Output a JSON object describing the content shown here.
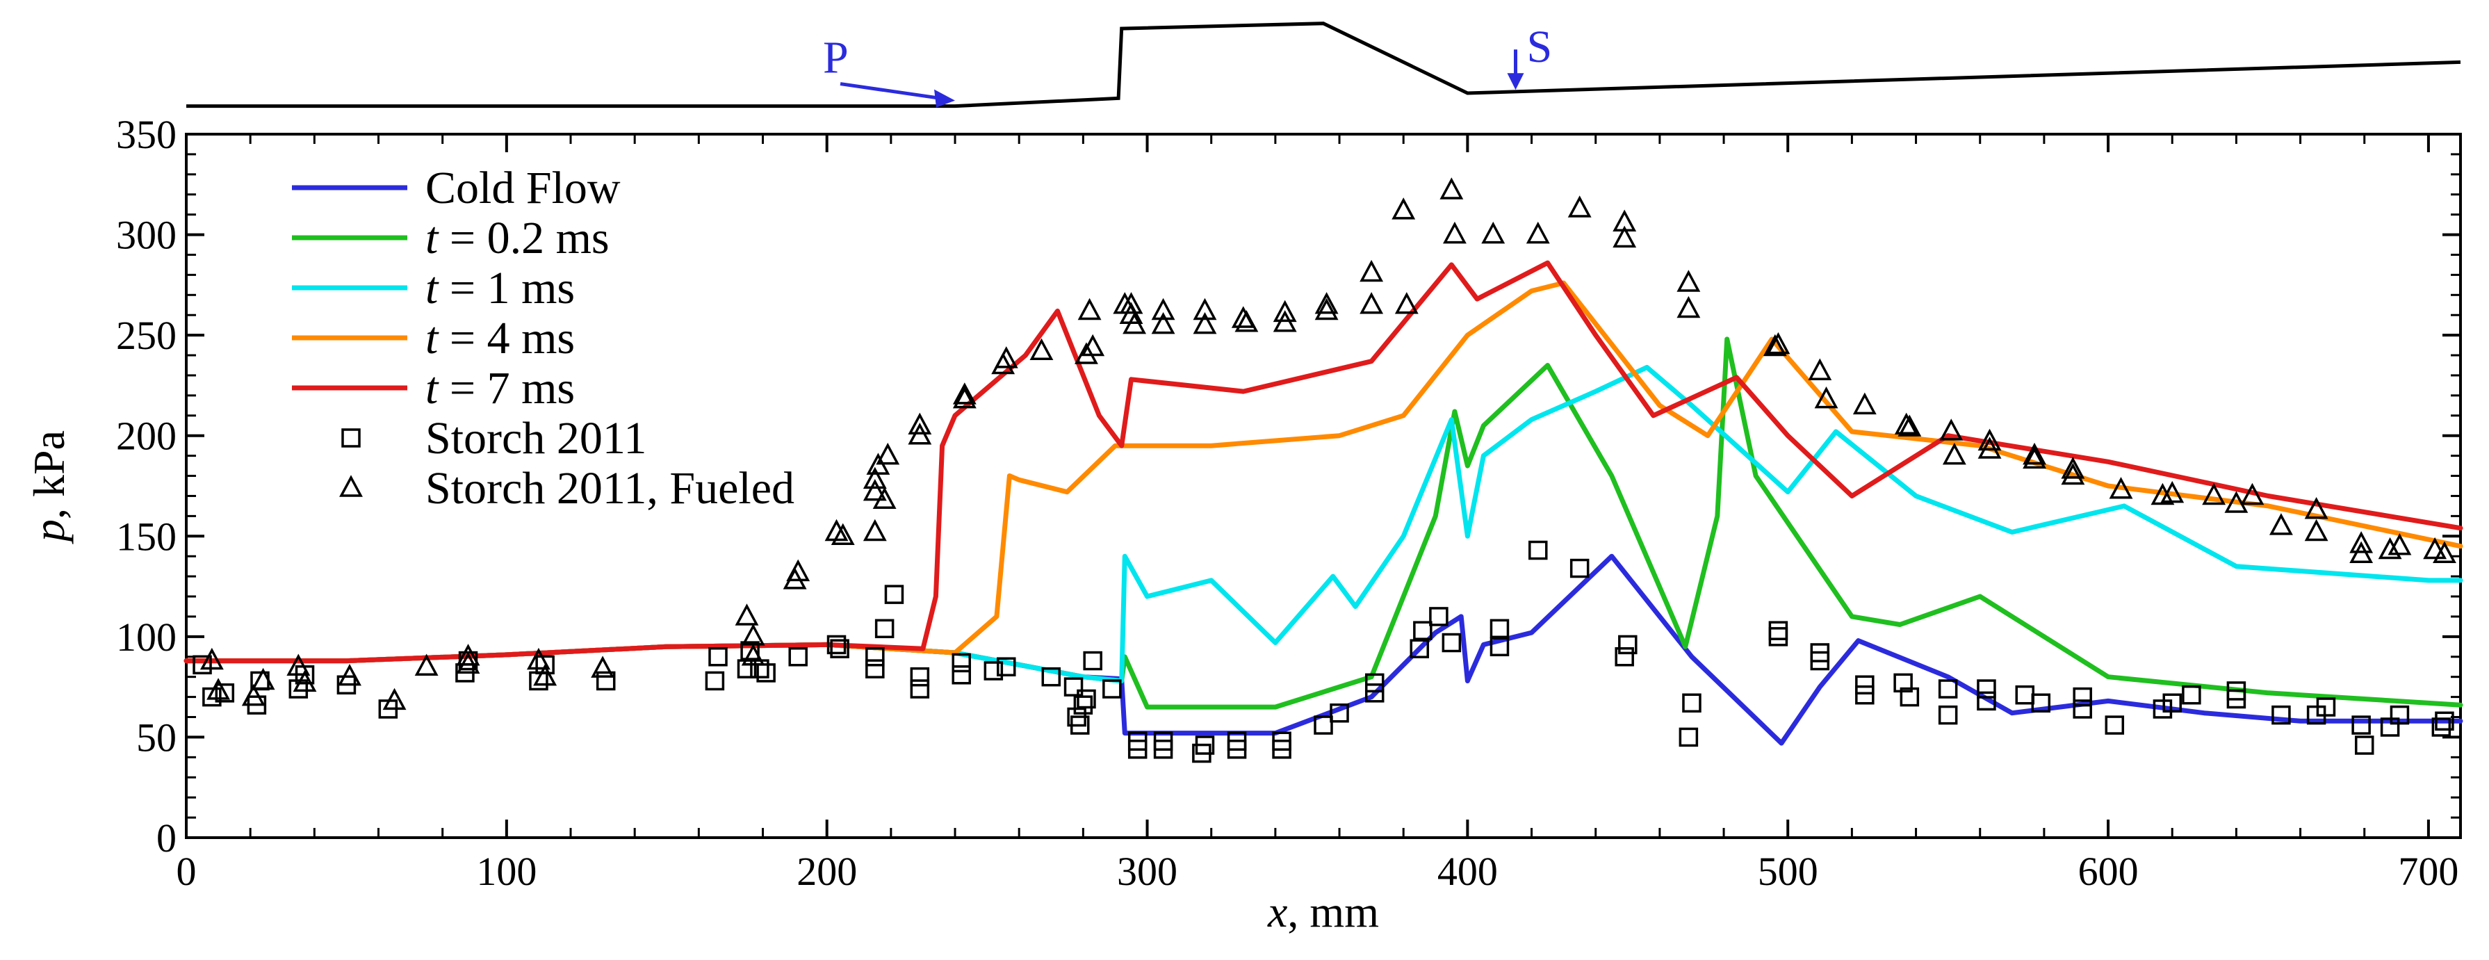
{
  "chart_data": {
    "type": "line",
    "xlabel": "x, mm",
    "ylabel": "p, kPa",
    "xlim": [
      0,
      710
    ],
    "ylim": [
      0,
      350
    ],
    "xticks": [
      0,
      100,
      200,
      300,
      400,
      500,
      600,
      700
    ],
    "yticks": [
      0,
      50,
      100,
      150,
      200,
      250,
      300,
      350
    ],
    "geometry_profile": {
      "x": [
        0,
        240,
        291,
        292,
        355,
        400,
        710
      ],
      "h": [
        4,
        4,
        10,
        64,
        68,
        14,
        38
      ],
      "annotations": [
        {
          "label": "P",
          "x": 240
        },
        {
          "label": "S",
          "x": 415
        }
      ]
    },
    "series": [
      {
        "name": "Cold Flow",
        "color": "#2b2bdd",
        "x": [
          0,
          50,
          100,
          150,
          200,
          240,
          260,
          280,
          292,
          293,
          300,
          340,
          370,
          390,
          398,
          400,
          405,
          420,
          445,
          470,
          498,
          510,
          522,
          550,
          570,
          600,
          630,
          660,
          710
        ],
        "y": [
          88,
          88,
          91,
          95,
          96,
          92,
          86,
          80,
          79,
          52,
          52,
          52,
          70,
          102,
          110,
          78,
          96,
          102,
          140,
          90,
          47,
          75,
          98,
          80,
          62,
          68,
          62,
          58,
          58
        ]
      },
      {
        "name": "t = 0.2 ms",
        "color": "#1fbf1f",
        "x": [
          0,
          50,
          100,
          150,
          200,
          240,
          260,
          280,
          292,
          293,
          300,
          340,
          370,
          390,
          396,
          400,
          405,
          425,
          445,
          468,
          478,
          481,
          490,
          520,
          535,
          560,
          600,
          650,
          710
        ],
        "y": [
          88,
          88,
          91,
          95,
          96,
          92,
          86,
          80,
          78,
          90,
          65,
          65,
          80,
          160,
          212,
          185,
          205,
          235,
          180,
          95,
          160,
          248,
          180,
          110,
          106,
          120,
          80,
          72,
          66
        ]
      },
      {
        "name": "t = 1 ms",
        "color": "#00e5ee",
        "x": [
          0,
          50,
          100,
          150,
          200,
          240,
          260,
          280,
          292,
          293,
          300,
          320,
          340,
          358,
          365,
          380,
          395,
          400,
          405,
          420,
          440,
          456,
          470,
          500,
          515,
          540,
          570,
          605,
          640,
          700,
          710
        ],
        "y": [
          88,
          88,
          91,
          95,
          96,
          92,
          86,
          80,
          78,
          140,
          120,
          128,
          97,
          130,
          115,
          150,
          208,
          150,
          190,
          208,
          222,
          234,
          215,
          172,
          202,
          170,
          152,
          165,
          135,
          128,
          128
        ]
      },
      {
        "name": "t = 4 ms",
        "color": "#ff8a00",
        "x": [
          0,
          50,
          100,
          150,
          200,
          240,
          253,
          257,
          260,
          275,
          290,
          320,
          360,
          380,
          400,
          420,
          430,
          460,
          475,
          495,
          520,
          560,
          600,
          650,
          710
        ],
        "y": [
          88,
          88,
          91,
          95,
          96,
          92,
          110,
          180,
          178,
          172,
          195,
          195,
          200,
          210,
          250,
          272,
          276,
          215,
          200,
          248,
          202,
          195,
          175,
          165,
          145
        ]
      },
      {
        "name": "t = 7 ms",
        "color": "#e01b1b",
        "x": [
          0,
          50,
          100,
          150,
          200,
          230,
          234,
          236,
          240,
          262,
          272,
          285,
          292,
          295,
          330,
          370,
          395,
          403,
          425,
          440,
          458,
          484,
          500,
          520,
          550,
          600,
          650,
          710
        ],
        "y": [
          88,
          88,
          91,
          95,
          96,
          94,
          120,
          195,
          210,
          240,
          262,
          210,
          195,
          228,
          222,
          237,
          285,
          268,
          286,
          250,
          210,
          229,
          200,
          170,
          200,
          187,
          170,
          154
        ]
      }
    ],
    "markers": [
      {
        "name": "Storch 2011",
        "symbol": "square",
        "points": [
          [
            5,
            86
          ],
          [
            8,
            70
          ],
          [
            12,
            72
          ],
          [
            22,
            66
          ],
          [
            23,
            78
          ],
          [
            35,
            74
          ],
          [
            37,
            81
          ],
          [
            50,
            76
          ],
          [
            63,
            64
          ],
          [
            87,
            82
          ],
          [
            88,
            88
          ],
          [
            110,
            78
          ],
          [
            112,
            86
          ],
          [
            131,
            78
          ],
          [
            165,
            78
          ],
          [
            166,
            90
          ],
          [
            175,
            84
          ],
          [
            176,
            93
          ],
          [
            179,
            84
          ],
          [
            181,
            82
          ],
          [
            191,
            90
          ],
          [
            203,
            96
          ],
          [
            204,
            94
          ],
          [
            215,
            84
          ],
          [
            215,
            90
          ],
          [
            218,
            104
          ],
          [
            221,
            121
          ],
          [
            229,
            74
          ],
          [
            229,
            80
          ],
          [
            242,
            81
          ],
          [
            242,
            87
          ],
          [
            252,
            83
          ],
          [
            256,
            85
          ],
          [
            270,
            80
          ],
          [
            277,
            75
          ],
          [
            278,
            60
          ],
          [
            279,
            56
          ],
          [
            280,
            66
          ],
          [
            281,
            69
          ],
          [
            283,
            88
          ],
          [
            289,
            74
          ],
          [
            297,
            48
          ],
          [
            297,
            44
          ],
          [
            305,
            44
          ],
          [
            305,
            48
          ],
          [
            317,
            42
          ],
          [
            318,
            46
          ],
          [
            328,
            44
          ],
          [
            328,
            48
          ],
          [
            342,
            44
          ],
          [
            342,
            48
          ],
          [
            355,
            56
          ],
          [
            360,
            62
          ],
          [
            371,
            72
          ],
          [
            371,
            77
          ],
          [
            385,
            94
          ],
          [
            386,
            103
          ],
          [
            391,
            110
          ],
          [
            395,
            97
          ],
          [
            410,
            95
          ],
          [
            410,
            104
          ],
          [
            422,
            143
          ],
          [
            435,
            134
          ],
          [
            449,
            90
          ],
          [
            450,
            96
          ],
          [
            469,
            50
          ],
          [
            470,
            67
          ],
          [
            497,
            100
          ],
          [
            497,
            103
          ],
          [
            510,
            88
          ],
          [
            510,
            92
          ],
          [
            524,
            76
          ],
          [
            524,
            71
          ],
          [
            536,
            77
          ],
          [
            538,
            70
          ],
          [
            550,
            74
          ],
          [
            550,
            61
          ],
          [
            562,
            74
          ],
          [
            562,
            68
          ],
          [
            574,
            71
          ],
          [
            579,
            67
          ],
          [
            592,
            70
          ],
          [
            592,
            64
          ],
          [
            602,
            56
          ],
          [
            617,
            64
          ],
          [
            620,
            67
          ],
          [
            626,
            71
          ],
          [
            640,
            73
          ],
          [
            640,
            69
          ],
          [
            654,
            61
          ],
          [
            665,
            61
          ],
          [
            668,
            65
          ],
          [
            679,
            56
          ],
          [
            680,
            46
          ],
          [
            688,
            55
          ],
          [
            691,
            61
          ],
          [
            704,
            55
          ],
          [
            705,
            58
          ]
        ]
      },
      {
        "name": "Storch 2011, Fueled",
        "symbol": "triangle",
        "points": [
          [
            8,
            88
          ],
          [
            10,
            73
          ],
          [
            21,
            70
          ],
          [
            24,
            78
          ],
          [
            35,
            85
          ],
          [
            37,
            77
          ],
          [
            51,
            80
          ],
          [
            65,
            68
          ],
          [
            75,
            85
          ],
          [
            88,
            86
          ],
          [
            88,
            90
          ],
          [
            110,
            88
          ],
          [
            112,
            80
          ],
          [
            130,
            84
          ],
          [
            175,
            110
          ],
          [
            177,
            100
          ],
          [
            177,
            90
          ],
          [
            190,
            128
          ],
          [
            191,
            132
          ],
          [
            203,
            152
          ],
          [
            205,
            150
          ],
          [
            215,
            178
          ],
          [
            215,
            172
          ],
          [
            218,
            168
          ],
          [
            216,
            185
          ],
          [
            219,
            190
          ],
          [
            215,
            152
          ],
          [
            229,
            205
          ],
          [
            229,
            200
          ],
          [
            243,
            218
          ],
          [
            243,
            220
          ],
          [
            255,
            235
          ],
          [
            256,
            238
          ],
          [
            267,
            242
          ],
          [
            282,
            262
          ],
          [
            281,
            240
          ],
          [
            283,
            244
          ],
          [
            293,
            265
          ],
          [
            295,
            265
          ],
          [
            295,
            260
          ],
          [
            296,
            255
          ],
          [
            305,
            262
          ],
          [
            305,
            255
          ],
          [
            318,
            262
          ],
          [
            318,
            255
          ],
          [
            330,
            258
          ],
          [
            331,
            256
          ],
          [
            343,
            261
          ],
          [
            343,
            256
          ],
          [
            356,
            265
          ],
          [
            356,
            262
          ],
          [
            370,
            281
          ],
          [
            370,
            265
          ],
          [
            380,
            312
          ],
          [
            381,
            265
          ],
          [
            395,
            322
          ],
          [
            396,
            300
          ],
          [
            408,
            300
          ],
          [
            422,
            300
          ],
          [
            435,
            313
          ],
          [
            449,
            306
          ],
          [
            449,
            298
          ],
          [
            469,
            276
          ],
          [
            469,
            263
          ],
          [
            496,
            244
          ],
          [
            497,
            245
          ],
          [
            510,
            232
          ],
          [
            512,
            218
          ],
          [
            524,
            215
          ],
          [
            537,
            205
          ],
          [
            538,
            204
          ],
          [
            551,
            202
          ],
          [
            552,
            190
          ],
          [
            563,
            193
          ],
          [
            563,
            197
          ],
          [
            577,
            190
          ],
          [
            577,
            188
          ],
          [
            589,
            183
          ],
          [
            589,
            180
          ],
          [
            604,
            173
          ],
          [
            617,
            170
          ],
          [
            620,
            171
          ],
          [
            633,
            170
          ],
          [
            640,
            166
          ],
          [
            645,
            170
          ],
          [
            654,
            155
          ],
          [
            665,
            152
          ],
          [
            665,
            163
          ],
          [
            679,
            146
          ],
          [
            679,
            141
          ],
          [
            688,
            143
          ],
          [
            691,
            145
          ],
          [
            702,
            143
          ],
          [
            705,
            141
          ]
        ]
      }
    ],
    "legend": {
      "placement": "top-left",
      "entries": [
        {
          "prefix": "",
          "italic": "",
          "suffix": "Cold Flow"
        },
        {
          "prefix": "",
          "italic": "t",
          "suffix": " = 0.2 ms"
        },
        {
          "prefix": "",
          "italic": "t",
          "suffix": " = 1 ms"
        },
        {
          "prefix": "",
          "italic": "t",
          "suffix": " = 4 ms"
        },
        {
          "prefix": "",
          "italic": "t",
          "suffix": " = 7 ms"
        },
        {
          "prefix": "",
          "italic": "",
          "suffix": "Storch 2011"
        },
        {
          "prefix": "",
          "italic": "",
          "suffix": "Storch 2011, Fueled"
        }
      ]
    }
  }
}
